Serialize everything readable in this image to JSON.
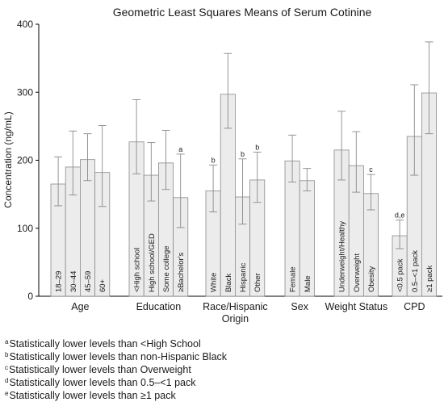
{
  "chart_data": {
    "type": "bar",
    "title": "Geometric Least Squares Means of Serum Cotinine",
    "ylabel": "Concentration (ng/mL)",
    "xlabel": "",
    "ylim": [
      0,
      400
    ],
    "yticks": [
      0,
      100,
      200,
      300,
      400
    ],
    "grid": false,
    "groups": [
      {
        "name": "Age",
        "bars": [
          {
            "label": "18–29",
            "value": 165,
            "ci_low": 133,
            "ci_high": 205,
            "annotation": ""
          },
          {
            "label": "30–44",
            "value": 190,
            "ci_low": 149,
            "ci_high": 243,
            "annotation": ""
          },
          {
            "label": "45–59",
            "value": 201,
            "ci_low": 170,
            "ci_high": 239,
            "annotation": ""
          },
          {
            "label": "60+",
            "value": 182,
            "ci_low": 132,
            "ci_high": 251,
            "annotation": ""
          }
        ]
      },
      {
        "name": "Education",
        "bars": [
          {
            "label": "<High school",
            "value": 227,
            "ci_low": 180,
            "ci_high": 289,
            "annotation": ""
          },
          {
            "label": "High school/GED",
            "value": 178,
            "ci_low": 140,
            "ci_high": 226,
            "annotation": ""
          },
          {
            "label": "Some college",
            "value": 196,
            "ci_low": 157,
            "ci_high": 244,
            "annotation": ""
          },
          {
            "label": "≥Bachelor's",
            "value": 145,
            "ci_low": 101,
            "ci_high": 209,
            "annotation": "a"
          }
        ]
      },
      {
        "name": "Race/Hispanic Origin",
        "bars": [
          {
            "label": "White",
            "value": 155,
            "ci_low": 124,
            "ci_high": 193,
            "annotation": "b"
          },
          {
            "label": "Black",
            "value": 297,
            "ci_low": 247,
            "ci_high": 357,
            "annotation": ""
          },
          {
            "label": "Hispanic",
            "value": 146,
            "ci_low": 106,
            "ci_high": 202,
            "annotation": "b"
          },
          {
            "label": "Other",
            "value": 171,
            "ci_low": 138,
            "ci_high": 212,
            "annotation": "b"
          }
        ]
      },
      {
        "name": "Sex",
        "bars": [
          {
            "label": "Female",
            "value": 199,
            "ci_low": 168,
            "ci_high": 237,
            "annotation": ""
          },
          {
            "label": "Male",
            "value": 170,
            "ci_low": 155,
            "ci_high": 188,
            "annotation": ""
          }
        ]
      },
      {
        "name": "Weight Status",
        "bars": [
          {
            "label": "Underweight/Healthy",
            "value": 215,
            "ci_low": 171,
            "ci_high": 272,
            "annotation": ""
          },
          {
            "label": "Overweight",
            "value": 192,
            "ci_low": 153,
            "ci_high": 242,
            "annotation": ""
          },
          {
            "label": "Obesity",
            "value": 151,
            "ci_low": 127,
            "ci_high": 179,
            "annotation": "c"
          }
        ]
      },
      {
        "name": "CPD",
        "bars": [
          {
            "label": "<0.5 pack",
            "value": 89,
            "ci_low": 70,
            "ci_high": 112,
            "annotation": "d,e"
          },
          {
            "label": "0.5–<1 pack",
            "value": 235,
            "ci_low": 178,
            "ci_high": 311,
            "annotation": ""
          },
          {
            "label": "≥1 pack",
            "value": 299,
            "ci_low": 239,
            "ci_high": 374,
            "annotation": ""
          }
        ]
      }
    ],
    "colors": {
      "bar_fill": "#ececec",
      "bar_stroke": "#8a8a8a",
      "errorbar": "#8a8a8a",
      "axis": "#000000",
      "text": "#1a1a1a"
    }
  },
  "footnotes": [
    {
      "marker": "a",
      "text": "Statistically lower levels than <High School"
    },
    {
      "marker": "b",
      "text": "Statistically lower levels than non-Hispanic Black"
    },
    {
      "marker": "c",
      "text": "Statistically lower levels than Overweight"
    },
    {
      "marker": "d",
      "text": "Statistically lower levels than 0.5–<1 pack"
    },
    {
      "marker": "e",
      "text": "Statistically lower levels than ≥1 pack"
    }
  ]
}
